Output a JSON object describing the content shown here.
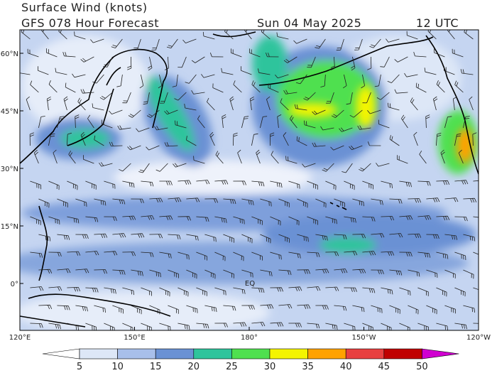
{
  "header": {
    "title": "Surface Wind (knots)",
    "subtitle": "GFS 078 Hour Forecast",
    "date": "Sun 04 May 2025",
    "time": "12 UTC"
  },
  "map": {
    "lat_labels": [
      "60°N",
      "45°N",
      "30°N",
      "15°N",
      "0°"
    ],
    "lon_labels": [
      "120°E",
      "150°E",
      "180°",
      "150°W",
      "120°W"
    ],
    "annotations": [
      "EQ"
    ]
  },
  "colorbar": {
    "labels": [
      5,
      10,
      15,
      20,
      25,
      30,
      35,
      40,
      45,
      50
    ],
    "colors": [
      "#ffffff",
      "#dde7f7",
      "#a8bfea",
      "#6a91d4",
      "#2fc49c",
      "#4fe04f",
      "#f4f400",
      "#ffa200",
      "#e84040",
      "#c00000",
      "#d000d0"
    ]
  }
}
